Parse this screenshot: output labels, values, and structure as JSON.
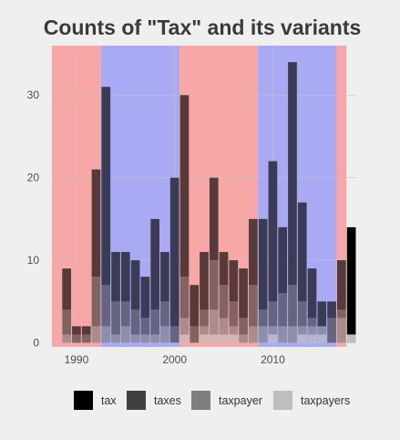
{
  "chart_data": {
    "type": "bar",
    "stacked": true,
    "title": "Counts of \"Tax\" and its variants",
    "xlabel": "",
    "ylabel": "",
    "x_ticks": [
      1990,
      2000,
      2010
    ],
    "y_ticks": [
      0,
      10,
      20,
      30
    ],
    "xlim": [
      1987.5,
      2018.5
    ],
    "ylim": [
      -0.5,
      36
    ],
    "grid": true,
    "legend_position": "bottom",
    "years": [
      1989,
      1990,
      1991,
      1992,
      1993,
      1994,
      1995,
      1996,
      1997,
      1998,
      1999,
      2000,
      2001,
      2002,
      2003,
      2004,
      2005,
      2006,
      2007,
      2008,
      2009,
      2010,
      2011,
      2012,
      2013,
      2014,
      2015,
      2016,
      2017,
      2018
    ],
    "series": [
      {
        "name": "taxpayers",
        "color": "#bebebe",
        "values": [
          0,
          0,
          0,
          0,
          0,
          0,
          0,
          0,
          0,
          0,
          0,
          0,
          1,
          0,
          1,
          1,
          1,
          1,
          0,
          0,
          0,
          1,
          0,
          0,
          1,
          1,
          1,
          0,
          0,
          1
        ]
      },
      {
        "name": "taxpayer",
        "color": "#7f7f7f",
        "values": [
          1,
          0,
          0,
          2,
          2,
          1,
          2,
          1,
          1,
          1,
          2,
          0,
          2,
          0,
          1,
          3,
          2,
          1,
          1,
          2,
          2,
          1,
          2,
          2,
          1,
          1,
          1,
          0,
          3,
          0
        ]
      },
      {
        "name": "taxes",
        "color": "#404040",
        "values": [
          3,
          1,
          1,
          6,
          5,
          4,
          3,
          3,
          2,
          3,
          3,
          2,
          5,
          2,
          2,
          6,
          4,
          3,
          2,
          5,
          2,
          3,
          4,
          5,
          3,
          1,
          0,
          3,
          1,
          0
        ]
      },
      {
        "name": "tax",
        "color": "#000000",
        "values": [
          5,
          1,
          1,
          13,
          24,
          6,
          6,
          6,
          5,
          11,
          6,
          18,
          22,
          5,
          7,
          10,
          4,
          5,
          6,
          8,
          11,
          17,
          8,
          27,
          12,
          6,
          3,
          2,
          6,
          13
        ]
      }
    ],
    "legend_order": [
      "tax",
      "taxes",
      "taxpayer",
      "taxpayers"
    ],
    "background_bands": [
      {
        "from": 1987.5,
        "to": 1992.5,
        "color": "#f8a7a7"
      },
      {
        "from": 1992.5,
        "to": 2000.5,
        "color": "#a9a9f4"
      },
      {
        "from": 2000.5,
        "to": 2008.5,
        "color": "#f8a7a7"
      },
      {
        "from": 2008.5,
        "to": 2016.5,
        "color": "#a9a9f4"
      },
      {
        "from": 2016.5,
        "to": 2017.5,
        "color": "#f8a7a7"
      }
    ],
    "bar_tint": {
      "color": "#f8a7a7",
      "color_alt": "#a9a9f4"
    }
  }
}
